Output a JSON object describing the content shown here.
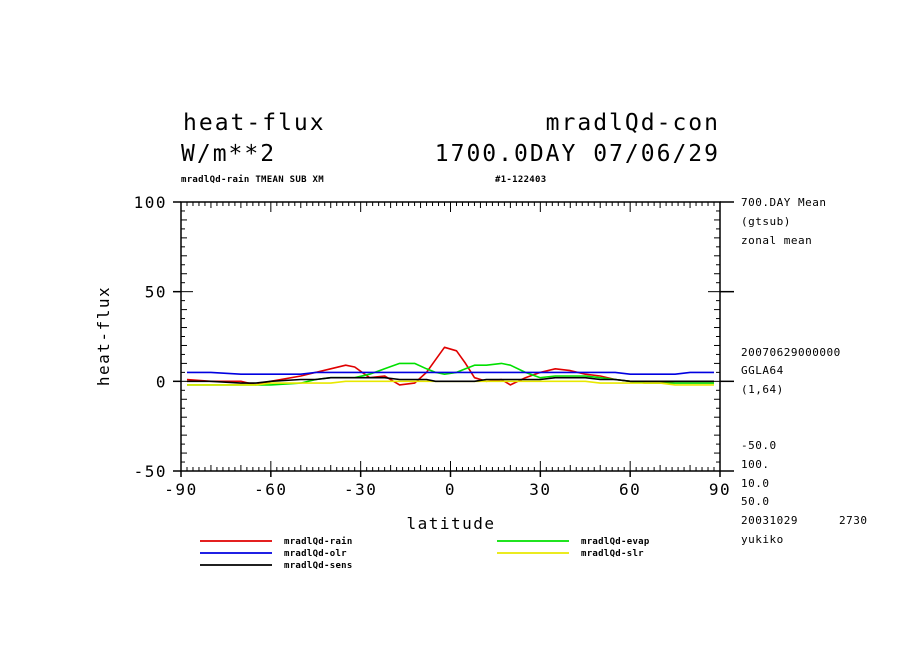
{
  "header": {
    "title_left": "heat-flux",
    "title_right": "mradlQd-con",
    "units": "W/m**2",
    "date_line": "1700.0DAY 07/06/29",
    "subtitle_left": "mradlQd-rain TMEAN SUB XM",
    "subtitle_right": "#1-122403"
  },
  "right_info": {
    "mean_line1": "700.DAY Mean",
    "mean_line2": "(gtsub)",
    "mean_line3": "zonal mean",
    "run_id": "20070629000000",
    "grid": "GGLA64",
    "dims": "(1,64)",
    "contour_min": "-50.0",
    "contour_max": "100.",
    "contour_int": "10.0",
    "contour_int2": "50.0",
    "stamp_date": "20031029",
    "stamp_num": "2730",
    "user": "yukiko"
  },
  "chart_data": {
    "type": "line",
    "xlabel": "latitude",
    "ylabel": "heat-flux",
    "xlim": [
      -90,
      90
    ],
    "ylim": [
      -50,
      100
    ],
    "xticks": [
      -90,
      -60,
      -30,
      0,
      30,
      60,
      90
    ],
    "yticks": [
      -50,
      0,
      50,
      100
    ],
    "grid": false,
    "legend": "bottom",
    "x": [
      -88,
      -80,
      -70,
      -65,
      -60,
      -50,
      -45,
      -40,
      -35,
      -32,
      -27,
      -22,
      -17,
      -12,
      -8,
      -5,
      -2,
      2,
      5,
      8,
      12,
      17,
      20,
      25,
      30,
      35,
      40,
      45,
      50,
      55,
      60,
      65,
      70,
      75,
      80,
      88
    ],
    "series": [
      {
        "name": "mradlQd-rain",
        "color": "#e00000",
        "values": [
          1,
          0,
          0,
          -2,
          0,
          3,
          5,
          7,
          9,
          8,
          2,
          3,
          -2,
          -1,
          5,
          12,
          19,
          17,
          10,
          2,
          0,
          1,
          -2,
          2,
          5,
          7,
          6,
          4,
          3,
          1,
          0,
          -1,
          -1,
          0,
          0,
          0
        ]
      },
      {
        "name": "mradlQd-evap",
        "color": "#00e000",
        "values": [
          -2,
          -2,
          -2,
          -2,
          -2,
          -1,
          1,
          2,
          2,
          2,
          4,
          7,
          10,
          10,
          7,
          5,
          4,
          5,
          7,
          9,
          9,
          10,
          9,
          5,
          2,
          3,
          3,
          3,
          2,
          1,
          0,
          -1,
          -1,
          -1,
          -1,
          -1
        ]
      },
      {
        "name": "mradlQd-olr",
        "color": "#0000e0",
        "values": [
          5,
          5,
          4,
          4,
          4,
          4,
          5,
          5,
          5,
          5,
          5,
          5,
          5,
          5,
          5,
          5,
          5,
          5,
          5,
          5,
          5,
          5,
          5,
          5,
          5,
          5,
          5,
          5,
          5,
          5,
          4,
          4,
          4,
          4,
          5,
          5
        ]
      },
      {
        "name": "mradlQd-slr",
        "color": "#e8e800",
        "values": [
          -2,
          -2,
          -2,
          -2,
          -1,
          -1,
          -1,
          -1,
          0,
          0,
          0,
          0,
          0,
          0,
          0,
          0,
          0,
          0,
          0,
          0,
          0,
          0,
          0,
          0,
          0,
          0,
          0,
          0,
          -1,
          -1,
          -1,
          -1,
          -1,
          -2,
          -2,
          -2
        ]
      },
      {
        "name": "mradlQd-sens",
        "color": "#000000",
        "values": [
          0,
          0,
          -1,
          -1,
          0,
          1,
          1,
          2,
          2,
          2,
          2,
          2,
          1,
          1,
          1,
          0,
          0,
          0,
          0,
          0,
          1,
          1,
          1,
          1,
          1,
          2,
          2,
          2,
          1,
          1,
          0,
          0,
          0,
          0,
          0,
          0
        ]
      }
    ]
  }
}
